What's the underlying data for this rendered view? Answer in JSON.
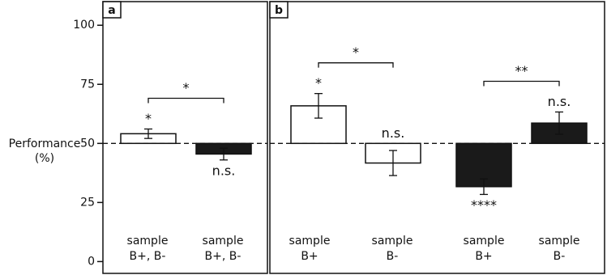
{
  "chart_data": [
    {
      "type": "bar",
      "panel": "a",
      "ylabel": [
        "Performance",
        "(%)"
      ],
      "ylim": [
        -5,
        110
      ],
      "yticks": [
        0,
        25,
        50,
        75,
        100
      ],
      "reference_line": 50,
      "categories": [
        [
          "sample",
          "B+, B-"
        ],
        [
          "sample",
          "B+, B-"
        ]
      ],
      "values": [
        54.1,
        45.5
      ],
      "errors": [
        2,
        2.5
      ],
      "colors": [
        "#ffffff",
        "#1a1a1a"
      ],
      "significance": [
        "*",
        "n.s."
      ],
      "comparisons": [
        {
          "from": 0,
          "to": 1,
          "label": "*"
        }
      ]
    },
    {
      "type": "bar",
      "panel": "b",
      "ylim": [
        -5,
        110
      ],
      "reference_line": 50,
      "categories": [
        [
          "sample",
          "B+"
        ],
        [
          "sample",
          "B-"
        ],
        [
          "sample",
          "B+"
        ],
        [
          "sample",
          "B-"
        ]
      ],
      "values": [
        65.9,
        41.7,
        31.7,
        58.6
      ],
      "errors": [
        5.2,
        5.3,
        3.3,
        4.7
      ],
      "colors": [
        "#ffffff",
        "#ffffff",
        "#1a1a1a",
        "#1a1a1a"
      ],
      "significance": [
        "*",
        "n.s.",
        "****",
        "n.s."
      ],
      "comparisons": [
        {
          "from": 0,
          "to": 1,
          "label": "*"
        },
        {
          "from": 2,
          "to": 3,
          "label": "**"
        }
      ]
    }
  ]
}
